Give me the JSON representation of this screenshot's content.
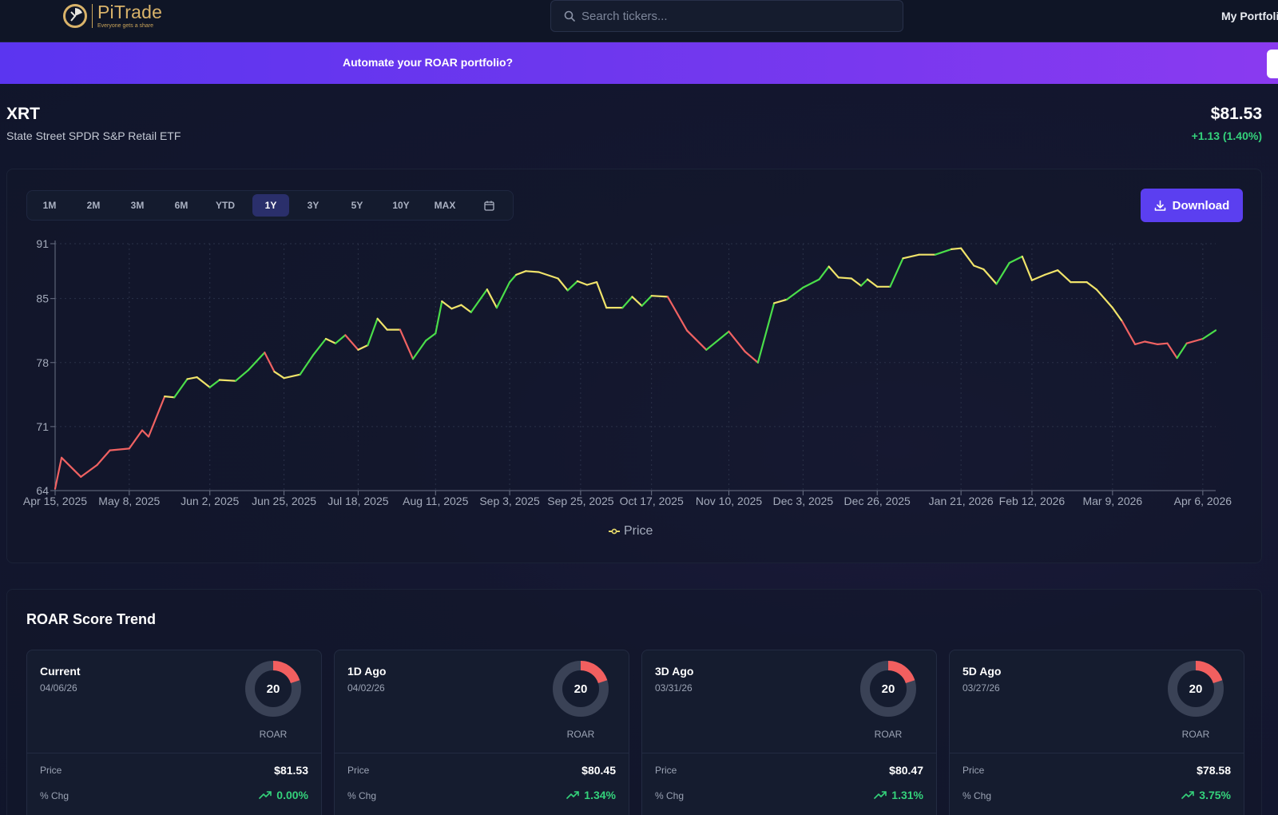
{
  "header": {
    "logo_name": "PiTrade",
    "logo_tagline": "Everyone gets a share",
    "search_placeholder": "Search tickers...",
    "nav_portfolio": "My Portfoli"
  },
  "banner": {
    "text": "Automate your ROAR portfolio?"
  },
  "ticker": {
    "symbol": "XRT",
    "name": "State Street SPDR S&P Retail ETF",
    "price": "$81.53",
    "change": "+1.13 (1.40%)"
  },
  "range_tabs": [
    "1M",
    "2M",
    "3M",
    "6M",
    "YTD",
    "1Y",
    "3Y",
    "5Y",
    "10Y",
    "MAX"
  ],
  "active_range": "1Y",
  "download_label": "Download",
  "colors": {
    "accent": "#5b3ff0",
    "positive": "#34d27b",
    "roar_low": "#f25f5f",
    "line_green": "#4ade4a",
    "line_yellow": "#f0e36a",
    "line_red": "#f06262"
  },
  "chart_data": {
    "type": "line",
    "xlabel": "",
    "ylabel": "",
    "ylim": [
      64,
      91
    ],
    "y_ticks": [
      91,
      85,
      78,
      71,
      64
    ],
    "x_tick_labels": [
      "Apr 15, 2025",
      "May 8, 2025",
      "Jun 2, 2025",
      "Jun 25, 2025",
      "Jul 18, 2025",
      "Aug 11, 2025",
      "Sep 3, 2025",
      "Sep 25, 2025",
      "Oct 17, 2025",
      "Nov 10, 2025",
      "Dec 3, 2025",
      "Dec 26, 2025",
      "Jan 21, 2026",
      "Feb 12, 2026",
      "Mar 9, 2026",
      "Apr 6, 2026"
    ],
    "legend": "Price",
    "x_start": "Apr 15, 2025",
    "x_end": "Apr 10, 2026",
    "series": [
      {
        "name": "Price",
        "points": [
          [
            "Apr 15, 2025",
            64.2
          ],
          [
            "Apr 17, 2025",
            67.6
          ],
          [
            "Apr 21, 2025",
            66.2
          ],
          [
            "Apr 23, 2025",
            65.5
          ],
          [
            "Apr 28, 2025",
            66.8
          ],
          [
            "May 2, 2025",
            68.4
          ],
          [
            "May 8, 2025",
            68.6
          ],
          [
            "May 12, 2025",
            70.6
          ],
          [
            "May 14, 2025",
            69.9
          ],
          [
            "May 19, 2025",
            74.3
          ],
          [
            "May 22, 2025",
            74.2
          ],
          [
            "May 26, 2025",
            76.2
          ],
          [
            "May 29, 2025",
            76.4
          ],
          [
            "Jun 2, 2025",
            75.3
          ],
          [
            "Jun 5, 2025",
            76.1
          ],
          [
            "Jun 10, 2025",
            76.0
          ],
          [
            "Jun 14, 2025",
            77.2
          ],
          [
            "Jun 19, 2025",
            79.1
          ],
          [
            "Jun 22, 2025",
            77.0
          ],
          [
            "Jun 25, 2025",
            76.3
          ],
          [
            "Jun 30, 2025",
            76.7
          ],
          [
            "Jul 4, 2025",
            78.8
          ],
          [
            "Jul 8, 2025",
            80.6
          ],
          [
            "Jul 11, 2025",
            80.1
          ],
          [
            "Jul 14, 2025",
            81.0
          ],
          [
            "Jul 18, 2025",
            79.4
          ],
          [
            "Jul 21, 2025",
            79.9
          ],
          [
            "Jul 24, 2025",
            82.8
          ],
          [
            "Jul 27, 2025",
            81.6
          ],
          [
            "Jul 31, 2025",
            81.6
          ],
          [
            "Aug 4, 2025",
            78.4
          ],
          [
            "Aug 8, 2025",
            80.4
          ],
          [
            "Aug 11, 2025",
            81.2
          ],
          [
            "Aug 13, 2025",
            84.7
          ],
          [
            "Aug 16, 2025",
            83.9
          ],
          [
            "Aug 19, 2025",
            84.3
          ],
          [
            "Aug 22, 2025",
            83.5
          ],
          [
            "Aug 27, 2025",
            86.0
          ],
          [
            "Aug 30, 2025",
            84.0
          ],
          [
            "Sep 3, 2025",
            86.8
          ],
          [
            "Sep 5, 2025",
            87.6
          ],
          [
            "Sep 8, 2025",
            88.0
          ],
          [
            "Sep 12, 2025",
            87.9
          ],
          [
            "Sep 18, 2025",
            87.2
          ],
          [
            "Sep 21, 2025",
            85.9
          ],
          [
            "Sep 24, 2025",
            86.9
          ],
          [
            "Sep 27, 2025",
            86.5
          ],
          [
            "Sep 30, 2025",
            86.8
          ],
          [
            "Oct 3, 2025",
            84.0
          ],
          [
            "Oct 8, 2025",
            84.0
          ],
          [
            "Oct 11, 2025",
            85.2
          ],
          [
            "Oct 14, 2025",
            84.2
          ],
          [
            "Oct 17, 2025",
            85.3
          ],
          [
            "Oct 22, 2025",
            85.2
          ],
          [
            "Oct 28, 2025",
            81.5
          ],
          [
            "Nov 3, 2025",
            79.4
          ],
          [
            "Nov 10, 2025",
            81.4
          ],
          [
            "Nov 15, 2025",
            79.2
          ],
          [
            "Nov 19, 2025",
            78.0
          ],
          [
            "Nov 24, 2025",
            84.5
          ],
          [
            "Nov 28, 2025",
            84.9
          ],
          [
            "Dec 3, 2025",
            86.2
          ],
          [
            "Dec 8, 2025",
            87.1
          ],
          [
            "Dec 11, 2025",
            88.5
          ],
          [
            "Dec 14, 2025",
            87.3
          ],
          [
            "Dec 18, 2025",
            87.2
          ],
          [
            "Dec 21, 2025",
            86.4
          ],
          [
            "Dec 23, 2025",
            87.1
          ],
          [
            "Dec 26, 2025",
            86.3
          ],
          [
            "Dec 30, 2025",
            86.3
          ],
          [
            "Jan 3, 2026",
            89.4
          ],
          [
            "Jan 8, 2026",
            89.8
          ],
          [
            "Jan 13, 2026",
            89.8
          ],
          [
            "Jan 18, 2026",
            90.4
          ],
          [
            "Jan 21, 2026",
            90.5
          ],
          [
            "Jan 25, 2026",
            88.6
          ],
          [
            "Jan 28, 2026",
            88.2
          ],
          [
            "Feb 1, 2026",
            86.6
          ],
          [
            "Feb 5, 2026",
            88.9
          ],
          [
            "Feb 9, 2026",
            89.6
          ],
          [
            "Feb 12, 2026",
            87.0
          ],
          [
            "Feb 16, 2026",
            87.6
          ],
          [
            "Feb 20, 2026",
            88.1
          ],
          [
            "Feb 24, 2026",
            86.8
          ],
          [
            "Mar 1, 2026",
            86.8
          ],
          [
            "Mar 4, 2026",
            86.0
          ],
          [
            "Mar 9, 2026",
            84.0
          ],
          [
            "Mar 12, 2026",
            82.5
          ],
          [
            "Mar 16, 2026",
            80.0
          ],
          [
            "Mar 19, 2026",
            80.3
          ],
          [
            "Mar 23, 2026",
            80.0
          ],
          [
            "Mar 26, 2026",
            80.1
          ],
          [
            "Mar 29, 2026",
            78.5
          ],
          [
            "Apr 1, 2026",
            80.1
          ],
          [
            "Apr 6, 2026",
            80.6
          ],
          [
            "Apr 10, 2026",
            81.53
          ]
        ]
      }
    ]
  },
  "roar": {
    "title": "ROAR Score Trend",
    "cards": [
      {
        "label": "Current",
        "date": "04/06/26",
        "score": "20",
        "score_value": 20,
        "roar_label": "ROAR",
        "price_label": "Price",
        "price": "$81.53",
        "chg_label": "% Chg",
        "chg": "0.00%"
      },
      {
        "label": "1D Ago",
        "date": "04/02/26",
        "score": "20",
        "score_value": 20,
        "roar_label": "ROAR",
        "price_label": "Price",
        "price": "$80.45",
        "chg_label": "% Chg",
        "chg": "1.34%"
      },
      {
        "label": "3D Ago",
        "date": "03/31/26",
        "score": "20",
        "score_value": 20,
        "roar_label": "ROAR",
        "price_label": "Price",
        "price": "$80.47",
        "chg_label": "% Chg",
        "chg": "1.31%"
      },
      {
        "label": "5D Ago",
        "date": "03/27/26",
        "score": "20",
        "score_value": 20,
        "roar_label": "ROAR",
        "price_label": "Price",
        "price": "$78.58",
        "chg_label": "% Chg",
        "chg": "3.75%"
      }
    ]
  }
}
